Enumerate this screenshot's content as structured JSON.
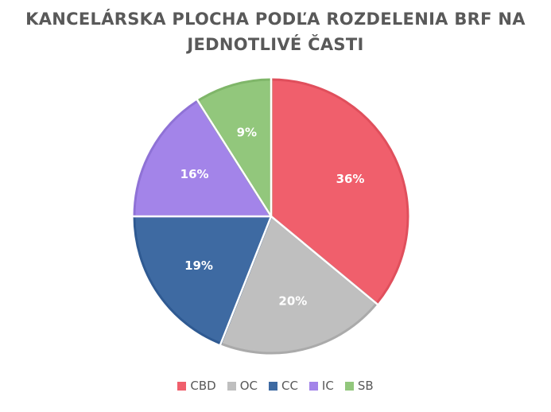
{
  "chart_data": {
    "type": "pie",
    "title_lines": [
      "KANCELÁRSKA PLOCHA PODĽA ROZDELENIA BRF NA",
      "JEDNOTLIVÉ ČASTI"
    ],
    "categories": [
      "CBD",
      "OC",
      "CC",
      "IC",
      "SB"
    ],
    "values": [
      36,
      20,
      19,
      16,
      9
    ],
    "labels": [
      "36%",
      "20%",
      "19%",
      "16%",
      "9%"
    ],
    "colors": [
      "#f05f6c",
      "#bfbfbf",
      "#3e6aa2",
      "#a384e9",
      "#92c77c"
    ],
    "edge_colors": [
      "#e04f5c",
      "#aaaaaa",
      "#2f5a92",
      "#8f72d6",
      "#7fb669"
    ],
    "legend_position": "bottom"
  }
}
